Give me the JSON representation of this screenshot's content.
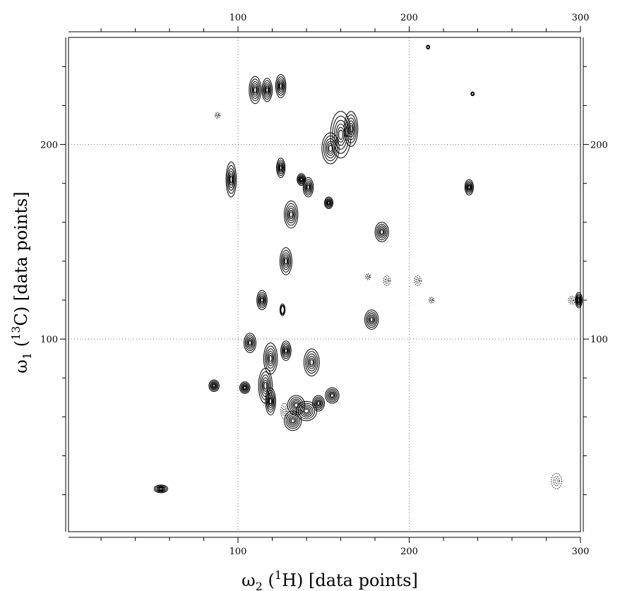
{
  "chart_data": {
    "type": "contour",
    "xlabel": "ω2 (1H) [data points]",
    "ylabel": "ω1 (13C) [data points]",
    "xlabel_parts": {
      "omega": "ω",
      "omega_sub": "2",
      "open": " (",
      "iso": "1",
      "nucleus": "H) [data points]"
    },
    "ylabel_parts": {
      "omega": "ω",
      "omega_sub": "1",
      "open": " (",
      "iso": "13",
      "nucleus": "C) [data points]"
    },
    "xlim": [
      1,
      300
    ],
    "ylim": [
      1,
      255
    ],
    "x_ticks": [
      {
        "value": 100,
        "label": "100"
      },
      {
        "value": 200,
        "label": "200"
      },
      {
        "value": 300,
        "label": "300"
      }
    ],
    "y_ticks": [
      {
        "value": 100,
        "label": "100"
      },
      {
        "value": 200,
        "label": "200"
      }
    ],
    "grid": true,
    "peaks": [
      {
        "x": 110,
        "y": 228,
        "sx": 3.5,
        "sy": 7
      },
      {
        "x": 117,
        "y": 228,
        "sx": 3,
        "sy": 6
      },
      {
        "x": 125,
        "y": 230,
        "sx": 3,
        "sy": 6
      },
      {
        "x": 160,
        "y": 205,
        "sx": 6,
        "sy": 12
      },
      {
        "x": 154,
        "y": 198,
        "sx": 5,
        "sy": 8
      },
      {
        "x": 166,
        "y": 208,
        "sx": 4,
        "sy": 9
      },
      {
        "x": 96,
        "y": 182,
        "sx": 3,
        "sy": 9
      },
      {
        "x": 125,
        "y": 188,
        "sx": 2.5,
        "sy": 5
      },
      {
        "x": 137,
        "y": 182,
        "sx": 2.5,
        "sy": 3
      },
      {
        "x": 141,
        "y": 178,
        "sx": 3,
        "sy": 5
      },
      {
        "x": 153,
        "y": 170,
        "sx": 2.5,
        "sy": 3
      },
      {
        "x": 131,
        "y": 164,
        "sx": 4,
        "sy": 7
      },
      {
        "x": 235,
        "y": 178,
        "sx": 2.5,
        "sy": 4
      },
      {
        "x": 184,
        "y": 155,
        "sx": 4,
        "sy": 5
      },
      {
        "x": 128,
        "y": 140,
        "sx": 3.5,
        "sy": 7
      },
      {
        "x": 114,
        "y": 120,
        "sx": 3,
        "sy": 5
      },
      {
        "x": 178,
        "y": 110,
        "sx": 4,
        "sy": 5
      },
      {
        "x": 299,
        "y": 120,
        "sx": 2,
        "sy": 4
      },
      {
        "x": 126,
        "y": 115,
        "sx": 1.5,
        "sy": 3
      },
      {
        "x": 107,
        "y": 98,
        "sx": 3.5,
        "sy": 5
      },
      {
        "x": 119,
        "y": 90,
        "sx": 4,
        "sy": 8
      },
      {
        "x": 128,
        "y": 94,
        "sx": 3,
        "sy": 5
      },
      {
        "x": 143,
        "y": 88,
        "sx": 4.5,
        "sy": 7
      },
      {
        "x": 116,
        "y": 76,
        "sx": 4,
        "sy": 9
      },
      {
        "x": 119,
        "y": 68,
        "sx": 3,
        "sy": 7
      },
      {
        "x": 104,
        "y": 75,
        "sx": 3,
        "sy": 3
      },
      {
        "x": 86,
        "y": 76,
        "sx": 3,
        "sy": 3
      },
      {
        "x": 134,
        "y": 66,
        "sx": 5,
        "sy": 5
      },
      {
        "x": 140,
        "y": 63,
        "sx": 6,
        "sy": 5
      },
      {
        "x": 132,
        "y": 58,
        "sx": 5,
        "sy": 5
      },
      {
        "x": 147,
        "y": 67,
        "sx": 3.5,
        "sy": 4
      },
      {
        "x": 155,
        "y": 71,
        "sx": 4,
        "sy": 4
      },
      {
        "x": 55,
        "y": 23,
        "sx": 4,
        "sy": 2
      },
      {
        "x": 237,
        "y": 226,
        "sx": 1,
        "sy": 1
      },
      {
        "x": 211,
        "y": 250,
        "sx": 1,
        "sy": 1
      }
    ],
    "negative_peaks": [
      {
        "x": 187,
        "y": 130,
        "sx": 2,
        "sy": 2.5
      },
      {
        "x": 176,
        "y": 132,
        "sx": 1.5,
        "sy": 1.5
      },
      {
        "x": 205,
        "y": 130,
        "sx": 2,
        "sy": 2.5
      },
      {
        "x": 286,
        "y": 27,
        "sx": 3,
        "sy": 4
      },
      {
        "x": 295,
        "y": 120,
        "sx": 2,
        "sy": 2
      },
      {
        "x": 88,
        "y": 215,
        "sx": 1.5,
        "sy": 1.5
      },
      {
        "x": 213,
        "y": 120,
        "sx": 1.5,
        "sy": 1.5
      },
      {
        "x": 127,
        "y": 63,
        "sx": 2,
        "sy": 4
      }
    ]
  },
  "colors": {
    "contour": "#000000",
    "grid": "#777777",
    "axis": "#000000",
    "background": "#ffffff"
  }
}
